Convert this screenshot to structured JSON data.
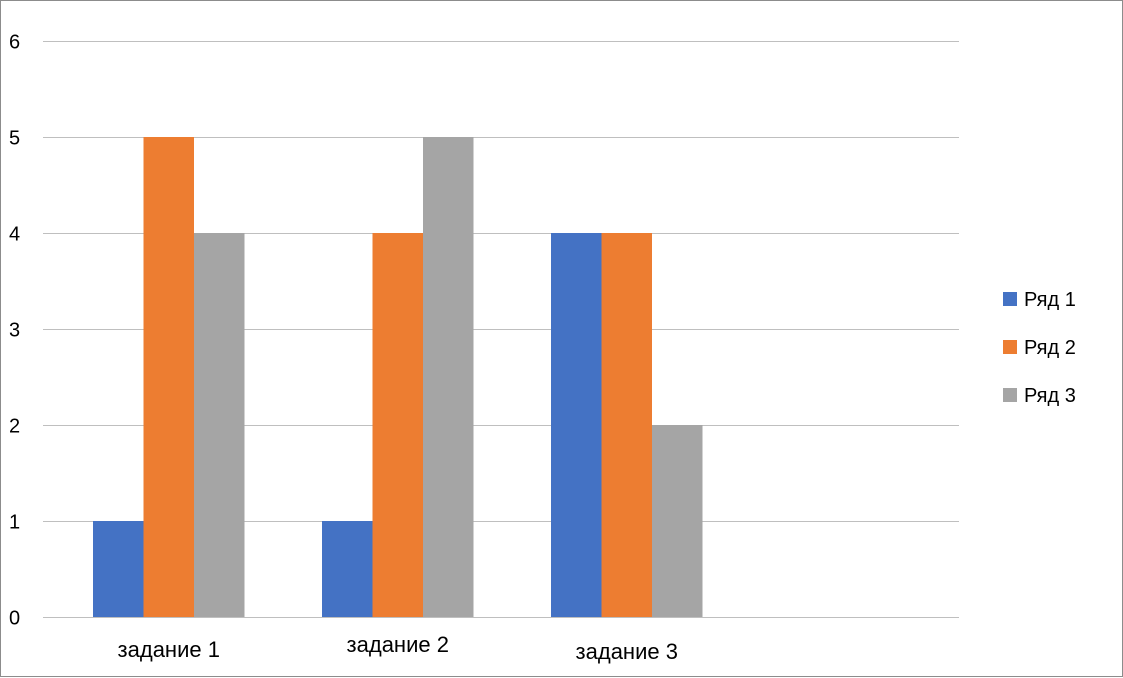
{
  "chart_data": {
    "type": "bar",
    "title": "",
    "xlabel": "",
    "ylabel": "",
    "categories": [
      "задание 1",
      "задание 2",
      "задание 3",
      ""
    ],
    "series": [
      {
        "name": "Ряд 1",
        "color": "#4472c4",
        "values": [
          1,
          1,
          4,
          null
        ]
      },
      {
        "name": "Ряд 2",
        "color": "#ed7d31",
        "values": [
          5,
          4,
          4,
          null
        ]
      },
      {
        "name": "Ряд 3",
        "color": "#a5a5a5",
        "values": [
          4,
          5,
          2,
          null
        ]
      }
    ],
    "ylim": [
      0,
      6
    ],
    "yticks": [
      0,
      1,
      2,
      3,
      4,
      5,
      6
    ],
    "grid": true,
    "legend_position": "right",
    "gridline_color": "#bfbfbf"
  }
}
